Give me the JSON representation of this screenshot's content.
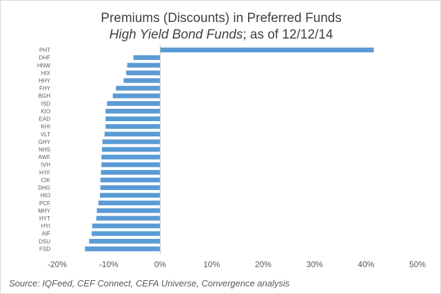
{
  "title": "Premiums (Discounts) in Preferred Funds",
  "subtitle_italic": "High Yield Bond Funds",
  "subtitle_rest": "; as of 12/12/14",
  "source": "Source:  IQFeed, CEF Connect, CEFA Universe, Convergence analysis",
  "chart_data": {
    "type": "bar",
    "orientation": "horizontal",
    "bar_color": "#5b9bd5",
    "categories": [
      "PHT",
      "DHF",
      "HNW",
      "HIX",
      "HHY",
      "FHY",
      "BGH",
      "ISD",
      "KIO",
      "EAD",
      "KHI",
      "VLT",
      "GHY",
      "NHS",
      "AWF",
      "IVH",
      "HYF",
      "CIK",
      "DHG",
      "HIO",
      "PCF",
      "MHY",
      "HYT",
      "HYI",
      "AIF",
      "DSU",
      "FSD"
    ],
    "values": [
      41.5,
      -5.2,
      -6.4,
      -6.6,
      -7.1,
      -8.6,
      -9.2,
      -10.3,
      -10.6,
      -10.6,
      -10.6,
      -10.8,
      -11.2,
      -11.3,
      -11.4,
      -11.4,
      -11.5,
      -11.6,
      -11.6,
      -11.7,
      -12.0,
      -12.3,
      -12.4,
      -13.2,
      -13.3,
      -13.8,
      -14.6
    ],
    "xlim": [
      -20,
      50
    ],
    "x_ticks": [
      "-20%",
      "-10%",
      "0%",
      "10%",
      "20%",
      "30%",
      "40%",
      "50%"
    ],
    "x_tick_values": [
      -20,
      -10,
      0,
      10,
      20,
      30,
      40,
      50
    ],
    "grid": false,
    "legend": "none"
  }
}
